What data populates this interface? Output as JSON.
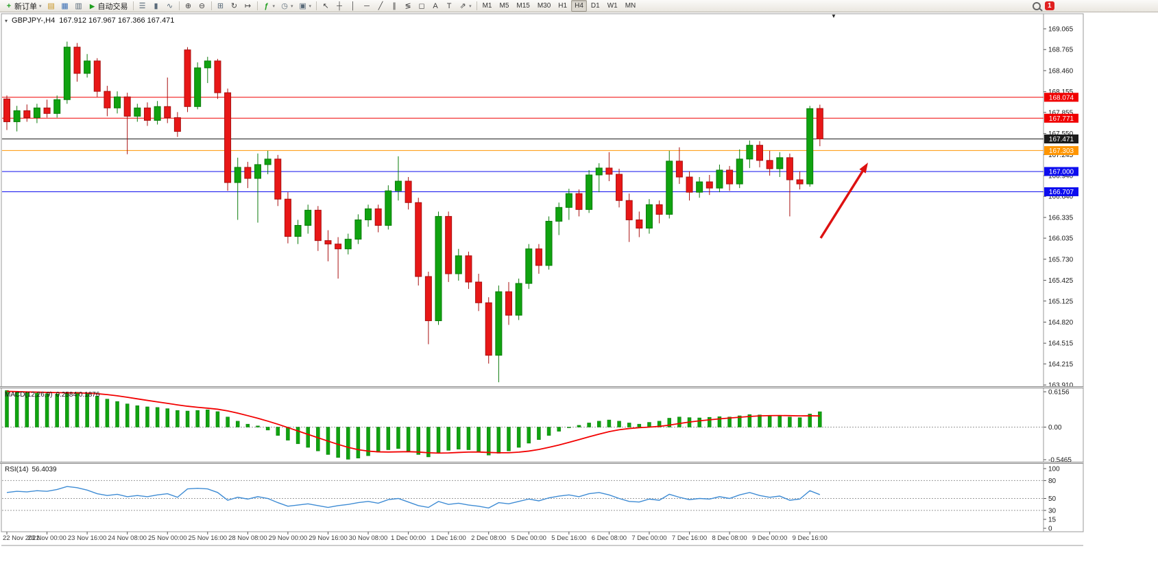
{
  "toolbar": {
    "new_order_label": "新订单",
    "autotrading_label": "自动交易",
    "timeframes": [
      "M1",
      "M5",
      "M15",
      "M30",
      "H1",
      "H4",
      "D1",
      "W1",
      "MN"
    ],
    "active_timeframe": "H4",
    "notification_count": "1",
    "glyphs": {
      "new_order_plus": "+",
      "charts": "▤",
      "market_watch": "▦",
      "navigator": "▥",
      "autotrading_play": "▶",
      "bar_chart": "☰",
      "candle_chart": "▮",
      "line_chart": "∿",
      "zoom_in": "⊕",
      "zoom_out": "⊖",
      "tile_windows": "⊞",
      "auto_scroll": "↻",
      "chart_shift": "↦",
      "indicators": "ƒ",
      "periods": "◷",
      "templates": "▣",
      "cursor": "↖",
      "crosshair": "┼",
      "vline": "│",
      "hline": "─",
      "trendline": "╱",
      "channel": "∥",
      "fibonacci": "≶",
      "shapes": "◻",
      "text": "A",
      "text_label": "T",
      "arrows": "⇗",
      "caret": "▾",
      "collapse": "▾",
      "shift_marker": "▼"
    }
  },
  "chart": {
    "symbol_period": "GBPJPY-,H4",
    "ohlc_text": "167.912 167.967 167.366 167.471",
    "price_ticks": [
      "169.065",
      "168.765",
      "168.460",
      "168.155",
      "167.855",
      "167.550",
      "167.245",
      "166.940",
      "166.640",
      "166.335",
      "166.035",
      "165.730",
      "165.425",
      "165.125",
      "164.820",
      "164.515",
      "164.215",
      "163.910"
    ]
  },
  "macd_panel": {
    "name": "MACD(12,26,9)",
    "values": "0.2584 0.1876",
    "scale_ticks": [
      "0.6156",
      "0.00",
      "-0.5465"
    ]
  },
  "rsi_panel": {
    "name": "RSI(14)",
    "value": "56.4039",
    "scale_ticks": [
      "100",
      "80",
      "50",
      "30",
      "15",
      "0"
    ],
    "levels": [
      80,
      50,
      30
    ]
  },
  "colors": {
    "up": "#10a310",
    "up_stroke": "#0a7a0a",
    "down": "#e81717",
    "down_stroke": "#a81010",
    "macd_hist": "#10a310",
    "macd_signal": "#f20000",
    "rsi_line": "#3d8bd4",
    "axis_text": "#1a1a1a",
    "time_text": "#3c3c3c",
    "border": "#9a9a9a",
    "level_dotted": "#999999",
    "arrow": "#dd1111"
  },
  "chart_data": {
    "type": "candlestick",
    "symbol": "GBPJPY",
    "period": "H4",
    "title": "GBPJPY-,H4 167.912 167.967 167.366 167.471",
    "price_range": [
      163.87,
      169.29
    ],
    "candles": [
      [
        168.05,
        168.1,
        167.6,
        167.72
      ],
      [
        167.72,
        167.95,
        167.58,
        167.88
      ],
      [
        167.88,
        167.97,
        167.72,
        167.78
      ],
      [
        167.78,
        167.98,
        167.7,
        167.92
      ],
      [
        167.92,
        168.04,
        167.78,
        167.84
      ],
      [
        167.84,
        168.1,
        167.78,
        168.04
      ],
      [
        168.04,
        168.88,
        167.98,
        168.8
      ],
      [
        168.8,
        168.86,
        168.3,
        168.42
      ],
      [
        168.42,
        168.7,
        168.36,
        168.6
      ],
      [
        168.6,
        168.64,
        168.08,
        168.16
      ],
      [
        168.16,
        168.24,
        167.8,
        167.92
      ],
      [
        167.92,
        168.16,
        167.84,
        168.08
      ],
      [
        168.08,
        168.14,
        167.25,
        167.8
      ],
      [
        167.8,
        167.98,
        167.72,
        167.92
      ],
      [
        167.92,
        168.0,
        167.66,
        167.74
      ],
      [
        167.74,
        168.02,
        167.68,
        167.94
      ],
      [
        167.94,
        168.36,
        167.7,
        167.78
      ],
      [
        167.78,
        167.86,
        167.5,
        167.58
      ],
      [
        168.76,
        168.8,
        167.86,
        167.94
      ],
      [
        167.94,
        168.58,
        167.9,
        168.5
      ],
      [
        168.5,
        168.66,
        168.28,
        168.6
      ],
      [
        168.6,
        168.63,
        168.05,
        168.14
      ],
      [
        168.14,
        168.2,
        166.72,
        166.84
      ],
      [
        166.84,
        167.2,
        166.3,
        167.06
      ],
      [
        167.06,
        167.14,
        166.76,
        166.9
      ],
      [
        166.9,
        167.26,
        166.26,
        167.1
      ],
      [
        167.1,
        167.3,
        166.96,
        167.18
      ],
      [
        167.18,
        167.24,
        166.5,
        166.6
      ],
      [
        166.6,
        166.7,
        165.96,
        166.06
      ],
      [
        166.06,
        166.3,
        165.95,
        166.22
      ],
      [
        166.22,
        166.52,
        166.1,
        166.44
      ],
      [
        166.44,
        166.5,
        165.85,
        166.0
      ],
      [
        166.0,
        166.15,
        165.7,
        165.95
      ],
      [
        165.95,
        166.05,
        165.45,
        165.88
      ],
      [
        165.88,
        166.1,
        165.8,
        166.02
      ],
      [
        166.02,
        166.38,
        165.95,
        166.3
      ],
      [
        166.3,
        166.52,
        166.2,
        166.46
      ],
      [
        166.46,
        166.52,
        166.12,
        166.22
      ],
      [
        166.22,
        166.8,
        166.16,
        166.72
      ],
      [
        166.72,
        167.22,
        166.58,
        166.86
      ],
      [
        166.86,
        166.92,
        166.45,
        166.55
      ],
      [
        166.55,
        166.62,
        165.35,
        165.48
      ],
      [
        165.48,
        165.55,
        164.5,
        164.84
      ],
      [
        164.84,
        166.42,
        164.78,
        166.35
      ],
      [
        166.35,
        166.42,
        165.4,
        165.52
      ],
      [
        165.52,
        165.88,
        165.42,
        165.78
      ],
      [
        165.78,
        165.84,
        165.3,
        165.4
      ],
      [
        165.4,
        165.52,
        164.98,
        165.1
      ],
      [
        165.1,
        165.18,
        164.22,
        164.34
      ],
      [
        164.34,
        165.35,
        163.95,
        165.26
      ],
      [
        165.26,
        165.4,
        164.78,
        164.92
      ],
      [
        164.92,
        165.45,
        164.85,
        165.38
      ],
      [
        165.38,
        165.95,
        165.3,
        165.88
      ],
      [
        165.88,
        165.95,
        165.52,
        165.64
      ],
      [
        165.64,
        166.35,
        165.58,
        166.28
      ],
      [
        166.28,
        166.55,
        166.08,
        166.48
      ],
      [
        166.48,
        166.75,
        166.3,
        166.68
      ],
      [
        166.68,
        166.74,
        166.35,
        166.45
      ],
      [
        166.45,
        167.02,
        166.4,
        166.95
      ],
      [
        166.95,
        167.12,
        166.7,
        167.05
      ],
      [
        167.05,
        167.28,
        166.86,
        166.96
      ],
      [
        166.96,
        167.04,
        166.48,
        166.58
      ],
      [
        166.58,
        166.68,
        165.98,
        166.3
      ],
      [
        166.3,
        166.42,
        166.05,
        166.18
      ],
      [
        166.18,
        166.6,
        166.1,
        166.52
      ],
      [
        166.52,
        166.58,
        166.25,
        166.38
      ],
      [
        166.38,
        167.3,
        166.32,
        167.15
      ],
      [
        167.15,
        167.35,
        166.82,
        166.92
      ],
      [
        166.92,
        167.0,
        166.58,
        166.7
      ],
      [
        166.7,
        166.92,
        166.62,
        166.85
      ],
      [
        166.85,
        166.95,
        166.66,
        166.76
      ],
      [
        166.76,
        167.1,
        166.7,
        167.02
      ],
      [
        167.02,
        167.08,
        166.72,
        166.82
      ],
      [
        166.82,
        167.32,
        166.76,
        167.18
      ],
      [
        167.18,
        167.45,
        167.05,
        167.38
      ],
      [
        167.38,
        167.44,
        167.06,
        167.16
      ],
      [
        167.16,
        167.3,
        166.94,
        167.04
      ],
      [
        167.04,
        167.28,
        166.92,
        167.2
      ],
      [
        167.2,
        167.26,
        166.35,
        166.88
      ],
      [
        166.88,
        167.0,
        166.74,
        166.82
      ],
      [
        166.82,
        167.95,
        166.78,
        167.91
      ],
      [
        167.912,
        167.967,
        167.366,
        167.471
      ]
    ],
    "hlines": [
      {
        "price": 168.074,
        "label": "168.074",
        "color": "#f00000"
      },
      {
        "price": 167.771,
        "label": "167.771",
        "color": "#f00000"
      },
      {
        "price": 167.471,
        "label": "167.471",
        "color": "#1c1c1c"
      },
      {
        "price": 167.303,
        "label": "167.303",
        "color": "#ff9500"
      },
      {
        "price": 167.0,
        "label": "167.000",
        "color": "#0d0dee"
      },
      {
        "price": 166.707,
        "label": "166.707",
        "color": "#0d0dee"
      }
    ],
    "time_labels": [
      [
        0,
        "22 Nov 2022"
      ],
      [
        4,
        "23 Nov 00:00"
      ],
      [
        8,
        "23 Nov 16:00"
      ],
      [
        12,
        "24 Nov 08:00"
      ],
      [
        16,
        "25 Nov 00:00"
      ],
      [
        20,
        "25 Nov 16:00"
      ],
      [
        24,
        "28 Nov 08:00"
      ],
      [
        28,
        "29 Nov 00:00"
      ],
      [
        32,
        "29 Nov 16:00"
      ],
      [
        36,
        "30 Nov 08:00"
      ],
      [
        40,
        "1 Dec 00:00"
      ],
      [
        44,
        "1 Dec 16:00"
      ],
      [
        48,
        "2 Dec 08:00"
      ],
      [
        52,
        "5 Dec 00:00"
      ],
      [
        56,
        "5 Dec 16:00"
      ],
      [
        60,
        "6 Dec 08:00"
      ],
      [
        64,
        "7 Dec 00:00"
      ],
      [
        68,
        "7 Dec 16:00"
      ],
      [
        72,
        "8 Dec 08:00"
      ],
      [
        76,
        "9 Dec 00:00"
      ],
      [
        80,
        "9 Dec 16:00"
      ]
    ],
    "macd": {
      "range": [
        -0.5465,
        0.6156
      ],
      "histogram": [
        0.615,
        0.6,
        0.585,
        0.57,
        0.56,
        0.555,
        0.57,
        0.585,
        0.565,
        0.52,
        0.47,
        0.43,
        0.39,
        0.36,
        0.34,
        0.33,
        0.31,
        0.28,
        0.27,
        0.28,
        0.29,
        0.26,
        0.17,
        0.1,
        0.05,
        0.02,
        -0.05,
        -0.14,
        -0.22,
        -0.28,
        -0.34,
        -0.4,
        -0.46,
        -0.51,
        -0.54,
        -0.52,
        -0.48,
        -0.42,
        -0.38,
        -0.36,
        -0.4,
        -0.46,
        -0.5,
        -0.44,
        -0.39,
        -0.37,
        -0.38,
        -0.42,
        -0.47,
        -0.44,
        -0.4,
        -0.34,
        -0.27,
        -0.21,
        -0.14,
        -0.07,
        -0.01,
        0.03,
        0.07,
        0.1,
        0.12,
        0.1,
        0.07,
        0.05,
        0.08,
        0.1,
        0.15,
        0.17,
        0.16,
        0.155,
        0.165,
        0.175,
        0.17,
        0.19,
        0.21,
        0.205,
        0.19,
        0.185,
        0.17,
        0.16,
        0.22,
        0.2584
      ],
      "signal": [
        0.6,
        0.595,
        0.59,
        0.587,
        0.582,
        0.578,
        0.575,
        0.574,
        0.57,
        0.56,
        0.545,
        0.525,
        0.5,
        0.474,
        0.448,
        0.423,
        0.398,
        0.373,
        0.35,
        0.332,
        0.317,
        0.3,
        0.272,
        0.235,
        0.192,
        0.148,
        0.1,
        0.048,
        -0.008,
        -0.065,
        -0.122,
        -0.178,
        -0.235,
        -0.29,
        -0.34,
        -0.378,
        -0.403,
        -0.415,
        -0.418,
        -0.415,
        -0.412,
        -0.418,
        -0.43,
        -0.436,
        -0.433,
        -0.425,
        -0.419,
        -0.418,
        -0.425,
        -0.43,
        -0.43,
        -0.42,
        -0.402,
        -0.375,
        -0.34,
        -0.3,
        -0.256,
        -0.21,
        -0.163,
        -0.118,
        -0.076,
        -0.045,
        -0.024,
        -0.01,
        0.0,
        0.012,
        0.033,
        0.06,
        0.085,
        0.105,
        0.122,
        0.138,
        0.152,
        0.165,
        0.178,
        0.188,
        0.193,
        0.194,
        0.192,
        0.188,
        0.19,
        0.1876
      ]
    },
    "rsi": {
      "range": [
        0,
        100
      ],
      "values": [
        60,
        62,
        61,
        63,
        62,
        65,
        70,
        68,
        64,
        58,
        55,
        57,
        53,
        55,
        53,
        56,
        58,
        52,
        66,
        67,
        66,
        60,
        47,
        52,
        49,
        53,
        50,
        43,
        37,
        39,
        41,
        38,
        35,
        38,
        40,
        43,
        45,
        42,
        48,
        50,
        44,
        38,
        35,
        45,
        40,
        42,
        39,
        37,
        34,
        43,
        41,
        45,
        49,
        46,
        51,
        54,
        56,
        53,
        58,
        60,
        56,
        50,
        45,
        44,
        49,
        47,
        57,
        52,
        48,
        50,
        49,
        53,
        50,
        56,
        60,
        55,
        52,
        54,
        47,
        49,
        63,
        56.4
      ]
    },
    "annotations": [
      {
        "type": "arrow",
        "tail": [
          1197,
          347
        ],
        "head": [
          1266,
          237
        ],
        "color": "#dd1111"
      }
    ]
  }
}
